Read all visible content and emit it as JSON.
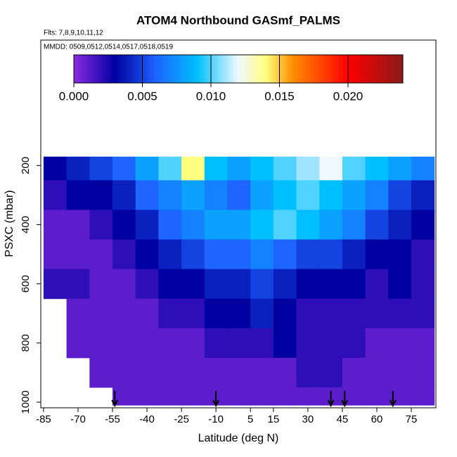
{
  "chart_data": {
    "type": "heatmap",
    "title": "ATOM4 Northbound GASmf_PALMS",
    "annotations": [
      "Flts: 7,8,9,10,11,12",
      "MMDD: 0509,0512,0514,0517,0518,0519"
    ],
    "x_label": "Latitude (deg N)",
    "y_label": "PSXC (mbar)",
    "xlim": [
      -86.2,
      85.7
    ],
    "xticks": [
      -85,
      -70,
      -55,
      -40,
      -25,
      -10,
      5,
      15,
      30,
      45,
      60,
      75
    ],
    "ylim": [
      1019,
      -224
    ],
    "yticks": [
      200,
      400,
      600,
      800,
      1000
    ],
    "lat_edges": [
      -85,
      -75,
      -65,
      -55,
      -45,
      -35,
      -25,
      -15,
      -5,
      5,
      15,
      25,
      35,
      45,
      55,
      65,
      75,
      85
    ],
    "p_edges": [
      170,
      250,
      350,
      450,
      550,
      650,
      750,
      850,
      950,
      1010
    ],
    "values": [
      [
        0.003,
        0.004,
        0.005,
        0.006,
        0.008,
        0.01,
        0.014,
        0.009,
        0.008,
        0.009,
        0.01,
        0.011,
        0.012,
        0.01,
        0.009,
        0.008,
        0.007
      ],
      [
        0.002,
        0.003,
        0.003,
        0.004,
        0.006,
        0.007,
        0.008,
        0.007,
        0.006,
        0.008,
        0.009,
        0.01,
        0.009,
        0.008,
        0.007,
        0.005,
        0.004
      ],
      [
        0.001,
        0.001,
        0.002,
        0.003,
        0.004,
        0.006,
        0.007,
        0.008,
        0.008,
        0.009,
        0.01,
        0.009,
        0.008,
        0.007,
        0.005,
        0.004,
        0.003
      ],
      [
        0.001,
        0.001,
        0.001,
        0.002,
        0.003,
        0.004,
        0.005,
        0.006,
        0.006,
        0.007,
        0.006,
        0.005,
        0.005,
        0.004,
        0.003,
        0.003,
        0.002
      ],
      [
        0.002,
        0.002,
        0.001,
        0.001,
        0.002,
        0.003,
        0.003,
        0.004,
        0.004,
        0.005,
        0.004,
        0.003,
        0.003,
        0.003,
        0.002,
        0.003,
        0.002
      ],
      [
        null,
        0.001,
        0.001,
        0.001,
        0.001,
        0.002,
        0.002,
        0.003,
        0.003,
        0.004,
        0.003,
        0.002,
        0.002,
        0.002,
        0.002,
        0.002,
        0.002
      ],
      [
        null,
        0.001,
        0.001,
        0.001,
        0.001,
        0.001,
        0.001,
        0.002,
        0.002,
        0.002,
        0.003,
        0.002,
        0.002,
        0.002,
        0.001,
        0.001,
        0.001
      ],
      [
        null,
        null,
        0.001,
        0.001,
        0.001,
        0.001,
        0.001,
        0.001,
        0.001,
        0.001,
        0.001,
        0.002,
        0.002,
        0.001,
        0.001,
        0.001,
        0.001
      ],
      [
        null,
        null,
        null,
        0.001,
        0.001,
        0.001,
        0.001,
        0.001,
        0.001,
        0.001,
        0.001,
        0.001,
        0.001,
        0.001,
        0.001,
        0.001,
        0.001
      ]
    ],
    "arrows": [
      -54,
      -10,
      40,
      46,
      67
    ],
    "colorscale": [
      [
        0,
        "#8a2be2"
      ],
      [
        0.003,
        "#0000a0"
      ],
      [
        0.006,
        "#1e64ff"
      ],
      [
        0.009,
        "#00bfff"
      ],
      [
        0.012,
        "#f0f8ff"
      ],
      [
        0.014,
        "#ffff80"
      ],
      [
        0.016,
        "#ff8c00"
      ],
      [
        0.02,
        "#ff0000"
      ],
      [
        0.024,
        "#8b1a1a"
      ]
    ],
    "clim": [
      0,
      0.024
    ],
    "cticks": [
      {
        "value": 0,
        "label": "0.000"
      },
      0.005,
      {
        "value": 0.01,
        "label": "0.010"
      },
      0.015,
      {
        "value": 0.02,
        "label": "0.020"
      }
    ]
  }
}
